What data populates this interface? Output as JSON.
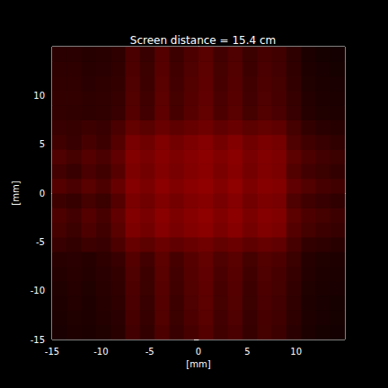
{
  "chart_data": {
    "type": "heatmap",
    "title": "Screen distance = 15.4 cm",
    "x_label": "[mm]",
    "y_label": "[mm]",
    "xlim": [
      -15,
      15
    ],
    "ylim": [
      -15,
      15
    ],
    "xticks": [
      -15,
      -10,
      -5,
      0,
      5,
      10
    ],
    "yticks": [
      -15,
      -10,
      -5,
      0,
      5,
      10
    ],
    "grid": false,
    "color": "#ff0000",
    "value_range": [
      0,
      1
    ],
    "x": [
      -14.25,
      -12.75,
      -11.25,
      -9.75,
      -8.25,
      -6.75,
      -5.25,
      -3.75,
      -2.25,
      -0.75,
      0.75,
      2.25,
      3.75,
      5.25,
      6.75,
      8.25,
      9.75,
      11.25,
      12.75,
      14.25
    ],
    "y": [
      -14.25,
      -12.75,
      -11.25,
      -9.75,
      -8.25,
      -6.75,
      -5.25,
      -3.75,
      -2.25,
      -0.75,
      0.75,
      2.25,
      3.75,
      5.25,
      6.75,
      8.25,
      9.75,
      11.25,
      12.75,
      14.25
    ],
    "cells": [
      [
        0.1,
        0.12,
        0.11,
        0.13,
        0.16,
        0.26,
        0.2,
        0.3,
        0.22,
        0.28,
        0.33,
        0.25,
        0.29,
        0.21,
        0.27,
        0.24,
        0.17,
        0.11,
        0.09,
        0.08
      ],
      [
        0.11,
        0.13,
        0.12,
        0.14,
        0.17,
        0.28,
        0.21,
        0.32,
        0.23,
        0.3,
        0.35,
        0.26,
        0.31,
        0.22,
        0.28,
        0.25,
        0.18,
        0.12,
        0.1,
        0.09
      ],
      [
        0.12,
        0.14,
        0.12,
        0.15,
        0.18,
        0.29,
        0.22,
        0.33,
        0.24,
        0.31,
        0.36,
        0.27,
        0.32,
        0.23,
        0.29,
        0.26,
        0.19,
        0.12,
        0.1,
        0.09
      ],
      [
        0.13,
        0.15,
        0.13,
        0.16,
        0.19,
        0.3,
        0.23,
        0.34,
        0.25,
        0.32,
        0.37,
        0.28,
        0.33,
        0.24,
        0.3,
        0.27,
        0.2,
        0.13,
        0.11,
        0.1
      ],
      [
        0.14,
        0.16,
        0.14,
        0.17,
        0.2,
        0.31,
        0.24,
        0.35,
        0.26,
        0.33,
        0.38,
        0.29,
        0.34,
        0.25,
        0.31,
        0.28,
        0.21,
        0.14,
        0.12,
        0.11
      ],
      [
        0.16,
        0.17,
        0.15,
        0.18,
        0.22,
        0.33,
        0.26,
        0.36,
        0.28,
        0.34,
        0.39,
        0.31,
        0.35,
        0.27,
        0.32,
        0.3,
        0.23,
        0.15,
        0.13,
        0.12
      ],
      [
        0.22,
        0.2,
        0.24,
        0.22,
        0.3,
        0.4,
        0.36,
        0.42,
        0.38,
        0.41,
        0.44,
        0.39,
        0.42,
        0.37,
        0.4,
        0.38,
        0.28,
        0.2,
        0.18,
        0.16
      ],
      [
        0.27,
        0.23,
        0.3,
        0.25,
        0.35,
        0.49,
        0.45,
        0.52,
        0.47,
        0.51,
        0.54,
        0.48,
        0.53,
        0.46,
        0.5,
        0.48,
        0.33,
        0.27,
        0.24,
        0.21
      ],
      [
        0.3,
        0.26,
        0.33,
        0.28,
        0.38,
        0.51,
        0.47,
        0.54,
        0.49,
        0.53,
        0.56,
        0.5,
        0.55,
        0.48,
        0.52,
        0.5,
        0.36,
        0.3,
        0.27,
        0.24
      ],
      [
        0.24,
        0.21,
        0.27,
        0.23,
        0.33,
        0.48,
        0.44,
        0.5,
        0.46,
        0.5,
        0.53,
        0.47,
        0.52,
        0.45,
        0.49,
        0.47,
        0.31,
        0.25,
        0.22,
        0.19
      ],
      [
        0.33,
        0.29,
        0.35,
        0.3,
        0.4,
        0.52,
        0.48,
        0.55,
        0.5,
        0.54,
        0.57,
        0.51,
        0.56,
        0.49,
        0.53,
        0.51,
        0.38,
        0.32,
        0.28,
        0.25
      ],
      [
        0.26,
        0.22,
        0.29,
        0.25,
        0.34,
        0.49,
        0.45,
        0.51,
        0.47,
        0.51,
        0.54,
        0.48,
        0.53,
        0.46,
        0.5,
        0.48,
        0.32,
        0.26,
        0.23,
        0.2
      ],
      [
        0.31,
        0.27,
        0.33,
        0.29,
        0.38,
        0.51,
        0.47,
        0.53,
        0.49,
        0.52,
        0.55,
        0.5,
        0.54,
        0.47,
        0.51,
        0.49,
        0.36,
        0.3,
        0.26,
        0.23
      ],
      [
        0.25,
        0.22,
        0.28,
        0.24,
        0.33,
        0.47,
        0.43,
        0.5,
        0.45,
        0.49,
        0.52,
        0.46,
        0.51,
        0.44,
        0.48,
        0.46,
        0.31,
        0.25,
        0.22,
        0.19
      ],
      [
        0.22,
        0.21,
        0.24,
        0.22,
        0.29,
        0.39,
        0.35,
        0.41,
        0.37,
        0.4,
        0.43,
        0.38,
        0.41,
        0.36,
        0.39,
        0.37,
        0.27,
        0.2,
        0.17,
        0.15
      ],
      [
        0.2,
        0.19,
        0.18,
        0.19,
        0.22,
        0.33,
        0.26,
        0.37,
        0.28,
        0.34,
        0.39,
        0.3,
        0.35,
        0.27,
        0.32,
        0.29,
        0.22,
        0.15,
        0.13,
        0.12
      ],
      [
        0.2,
        0.2,
        0.18,
        0.19,
        0.21,
        0.32,
        0.25,
        0.36,
        0.27,
        0.33,
        0.38,
        0.29,
        0.34,
        0.26,
        0.31,
        0.28,
        0.21,
        0.14,
        0.12,
        0.11
      ],
      [
        0.19,
        0.19,
        0.17,
        0.18,
        0.2,
        0.31,
        0.24,
        0.35,
        0.26,
        0.32,
        0.37,
        0.28,
        0.33,
        0.25,
        0.3,
        0.27,
        0.2,
        0.13,
        0.11,
        0.1
      ],
      [
        0.18,
        0.18,
        0.16,
        0.17,
        0.19,
        0.3,
        0.23,
        0.34,
        0.25,
        0.31,
        0.36,
        0.27,
        0.32,
        0.24,
        0.29,
        0.26,
        0.19,
        0.12,
        0.1,
        0.09
      ],
      [
        0.17,
        0.17,
        0.15,
        0.16,
        0.18,
        0.29,
        0.22,
        0.33,
        0.24,
        0.3,
        0.35,
        0.26,
        0.31,
        0.23,
        0.28,
        0.25,
        0.18,
        0.11,
        0.09,
        0.08
      ]
    ]
  }
}
